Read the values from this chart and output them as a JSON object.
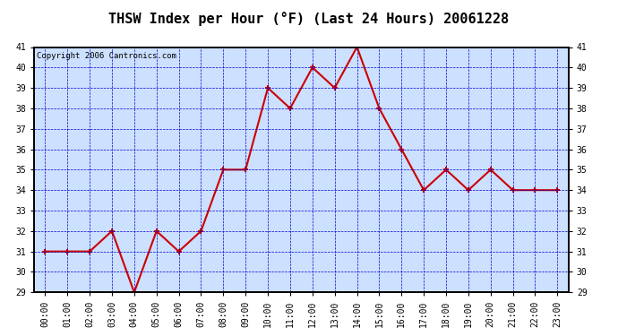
{
  "title": "THSW Index per Hour (°F) (Last 24 Hours) 20061228",
  "copyright": "Copyright 2006 Cantronics.com",
  "hours": [
    0,
    1,
    2,
    3,
    4,
    5,
    6,
    7,
    8,
    9,
    10,
    11,
    12,
    13,
    14,
    15,
    16,
    17,
    18,
    19,
    20,
    21,
    22,
    23
  ],
  "x_labels": [
    "00:00",
    "01:00",
    "02:00",
    "03:00",
    "04:00",
    "05:00",
    "06:00",
    "07:00",
    "08:00",
    "09:00",
    "10:00",
    "11:00",
    "12:00",
    "13:00",
    "14:00",
    "15:00",
    "16:00",
    "17:00",
    "18:00",
    "19:00",
    "20:00",
    "21:00",
    "22:00",
    "23:00"
  ],
  "values": [
    31.0,
    31.0,
    31.0,
    32.0,
    29.0,
    32.0,
    31.0,
    32.0,
    35.0,
    35.0,
    39.0,
    38.0,
    40.0,
    39.0,
    41.0,
    38.0,
    36.0,
    34.0,
    35.0,
    34.0,
    35.0,
    34.0,
    34.0,
    34.0
  ],
  "ylim": [
    29.0,
    41.0
  ],
  "yticks": [
    29.0,
    30.0,
    31.0,
    32.0,
    33.0,
    34.0,
    35.0,
    36.0,
    37.0,
    38.0,
    39.0,
    40.0,
    41.0
  ],
  "line_color": "#cc0000",
  "marker_color": "#cc0000",
  "bg_color": "#cce0ff",
  "outer_bg": "#ffffff",
  "grid_color": "#0000cc",
  "border_color": "#000000",
  "title_color": "#000000",
  "label_color": "#000000",
  "copyright_color": "#000000",
  "title_fontsize": 11,
  "tick_fontsize": 7,
  "copyright_fontsize": 6.5
}
